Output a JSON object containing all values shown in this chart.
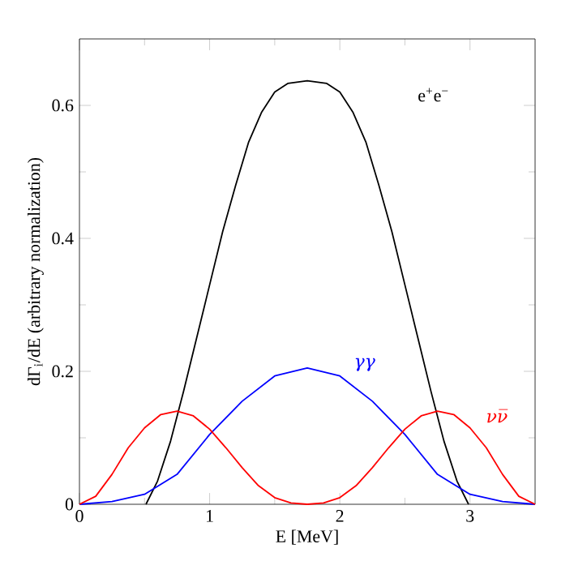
{
  "chart_data": {
    "type": "line",
    "xlabel": "E [MeV]",
    "ylabel": "dΓ$_{i}$/dE (arbitrary normalization)",
    "xlim": [
      0,
      3.5
    ],
    "ylim": [
      0,
      0.7
    ],
    "xticks": [
      0,
      1,
      2,
      3
    ],
    "yticks": [
      0,
      0.2,
      0.4,
      0.6
    ],
    "grid": false,
    "legend": false,
    "marker": "none",
    "line_style": "solid",
    "series": [
      {
        "name": "e$^{+}$e$^{−}$",
        "color": "#000000",
        "x": [
          0.511,
          0.6,
          0.7,
          0.8,
          0.9,
          1.0,
          1.1,
          1.2,
          1.3,
          1.4,
          1.5,
          1.6,
          1.75,
          1.9,
          2.0,
          2.1,
          2.2,
          2.3,
          2.4,
          2.5,
          2.6,
          2.7,
          2.8,
          2.9,
          2.989
        ],
        "values": [
          0,
          0.035,
          0.095,
          0.17,
          0.25,
          0.33,
          0.41,
          0.48,
          0.545,
          0.59,
          0.62,
          0.633,
          0.637,
          0.633,
          0.62,
          0.59,
          0.545,
          0.48,
          0.41,
          0.33,
          0.25,
          0.17,
          0.095,
          0.035,
          0
        ]
      },
      {
        "name": "γγ",
        "color": "#0000ff",
        "x": [
          0,
          0.25,
          0.5,
          0.75,
          1.0,
          1.25,
          1.5,
          1.75,
          2.0,
          2.25,
          2.5,
          2.75,
          3.0,
          3.25,
          3.5
        ],
        "values": [
          0,
          0.004,
          0.015,
          0.045,
          0.105,
          0.155,
          0.193,
          0.205,
          0.193,
          0.155,
          0.105,
          0.045,
          0.015,
          0.004,
          0
        ]
      },
      {
        "name": "νν̅",
        "color": "#ff0000",
        "x": [
          0,
          0.125,
          0.25,
          0.375,
          0.5,
          0.625,
          0.75,
          0.875,
          1.0,
          1.125,
          1.25,
          1.375,
          1.5,
          1.625,
          1.75,
          1.875,
          2.0,
          2.125,
          2.25,
          2.375,
          2.5,
          2.625,
          2.75,
          2.875,
          3.0,
          3.125,
          3.25,
          3.375,
          3.5
        ],
        "values": [
          0,
          0.012,
          0.045,
          0.085,
          0.115,
          0.135,
          0.14,
          0.133,
          0.113,
          0.085,
          0.055,
          0.028,
          0.01,
          0.002,
          0,
          0.002,
          0.01,
          0.028,
          0.055,
          0.085,
          0.113,
          0.133,
          0.14,
          0.135,
          0.115,
          0.085,
          0.045,
          0.012,
          0
        ]
      }
    ]
  }
}
